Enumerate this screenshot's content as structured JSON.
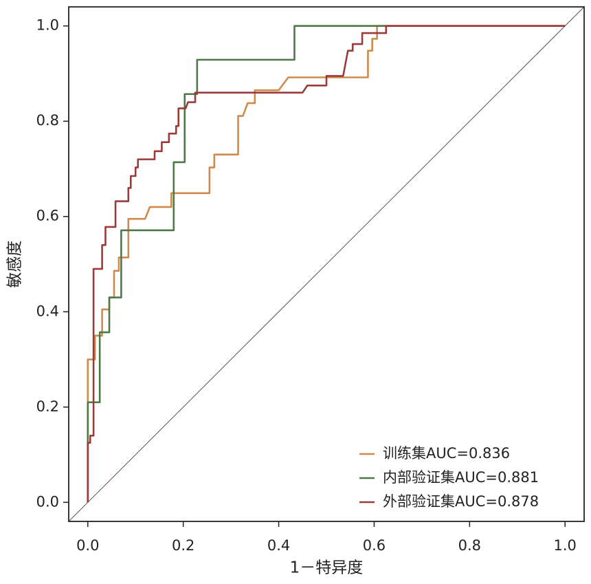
{
  "chart_data": {
    "type": "line",
    "xlabel": "1－特异度",
    "ylabel": "敏感度",
    "xlim": [
      -0.04,
      1.04
    ],
    "ylim": [
      -0.04,
      1.04
    ],
    "xticks": [
      {
        "value": 0,
        "label": "0.0"
      },
      0.2,
      0.4,
      0.6,
      0.8,
      {
        "value": 1,
        "label": "1.0"
      }
    ],
    "yticks": [
      {
        "value": 0,
        "label": "0.0"
      },
      0.2,
      0.4,
      0.6,
      0.8,
      {
        "value": 1,
        "label": "1.0"
      }
    ],
    "diagonal": true,
    "legend": "lower right",
    "series": [
      {
        "name": "训练集AUC=0.836",
        "color": "#d08a4c",
        "x": [
          0,
          0,
          0.015,
          0.015,
          0.03,
          0.03,
          0.045,
          0.045,
          0.055,
          0.055,
          0.065,
          0.065,
          0.085,
          0.085,
          0.12,
          0.13,
          0.175,
          0.175,
          0.255,
          0.255,
          0.265,
          0.265,
          0.315,
          0.315,
          0.325,
          0.335,
          0.35,
          0.35,
          0.4,
          0.42,
          0.587,
          0.587,
          0.596,
          0.596,
          0.606,
          0.606,
          1
        ],
        "values": [
          0,
          0.3,
          0.3,
          0.35,
          0.35,
          0.405,
          0.405,
          0.43,
          0.43,
          0.486,
          0.486,
          0.514,
          0.514,
          0.595,
          0.595,
          0.62,
          0.62,
          0.649,
          0.649,
          0.703,
          0.703,
          0.73,
          0.73,
          0.811,
          0.811,
          0.838,
          0.838,
          0.865,
          0.865,
          0.892,
          0.892,
          0.948,
          0.948,
          0.973,
          0.973,
          1,
          1
        ]
      },
      {
        "name": "内部验证集AUC=0.881",
        "color": "#4c7a44",
        "x": [
          0,
          0,
          0.025,
          0.025,
          0.045,
          0.045,
          0.07,
          0.07,
          0.18,
          0.18,
          0.203,
          0.203,
          0.229,
          0.229,
          0.433,
          0.433,
          1
        ],
        "values": [
          0,
          0.21,
          0.21,
          0.357,
          0.357,
          0.43,
          0.43,
          0.571,
          0.571,
          0.714,
          0.714,
          0.857,
          0.857,
          0.929,
          0.929,
          1,
          1
        ]
      },
      {
        "name": "外部验证集AUC=0.878",
        "color": "#9c3a3a",
        "x": [
          0,
          0,
          0.005,
          0.005,
          0.012,
          0.012,
          0.03,
          0.03,
          0.037,
          0.037,
          0.058,
          0.058,
          0.085,
          0.085,
          0.09,
          0.09,
          0.1,
          0.1,
          0.105,
          0.105,
          0.14,
          0.14,
          0.155,
          0.155,
          0.17,
          0.17,
          0.185,
          0.185,
          0.19,
          0.19,
          0.205,
          0.21,
          0.225,
          0.225,
          0.45,
          0.46,
          0.5,
          0.5,
          0.535,
          0.545,
          0.555,
          0.555,
          0.575,
          0.575,
          0.625,
          0.625,
          1
        ],
        "values": [
          0,
          0.125,
          0.125,
          0.14,
          0.14,
          0.49,
          0.49,
          0.54,
          0.54,
          0.578,
          0.578,
          0.632,
          0.632,
          0.66,
          0.66,
          0.685,
          0.685,
          0.703,
          0.703,
          0.72,
          0.72,
          0.737,
          0.737,
          0.756,
          0.756,
          0.774,
          0.774,
          0.79,
          0.79,
          0.827,
          0.827,
          0.84,
          0.84,
          0.86,
          0.86,
          0.875,
          0.875,
          0.895,
          0.895,
          0.948,
          0.948,
          0.962,
          0.962,
          0.985,
          0.985,
          1,
          1
        ]
      }
    ]
  }
}
